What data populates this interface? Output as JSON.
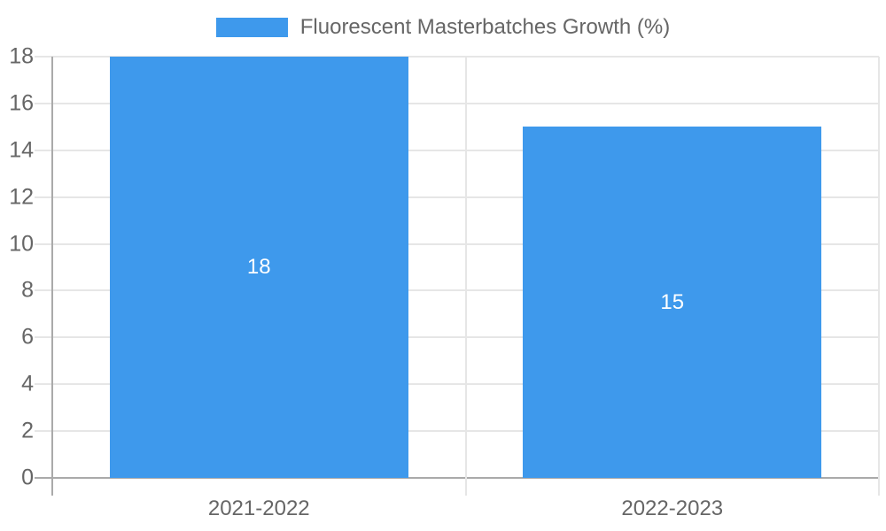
{
  "chart_data": {
    "type": "bar",
    "title": "Fluorescent Masterbatches Growth (%)",
    "legend": {
      "label": "Fluorescent Masterbatches Growth (%)",
      "position": "top-center"
    },
    "categories": [
      "2021-2022",
      "2022-2023"
    ],
    "series": [
      {
        "name": "Fluorescent Masterbatches Growth (%)",
        "values": [
          18,
          15
        ]
      }
    ],
    "bar_value_labels": [
      "18",
      "15"
    ],
    "xlabel": "",
    "ylabel": "",
    "ylim": [
      0,
      18
    ],
    "yticks": [
      0,
      2,
      4,
      6,
      8,
      10,
      12,
      14,
      16,
      18
    ],
    "grid": true,
    "colors": {
      "bar": "#3E99EC",
      "grid_line": "#E6E6E6",
      "zero_line": "#AAAAAA",
      "tick_label": "#666666",
      "value_label": "#FFFFFF",
      "background": "#FFFFFF"
    }
  }
}
